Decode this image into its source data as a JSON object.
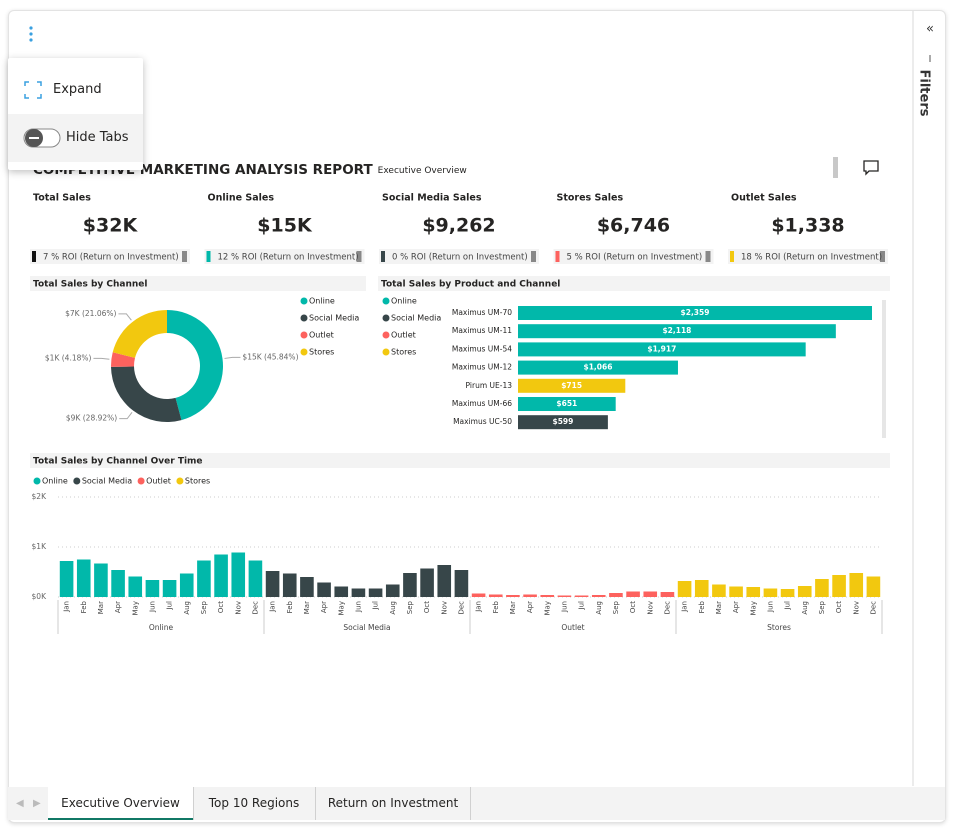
{
  "menu": {
    "items": [
      "Expand",
      "Hide Tabs"
    ]
  },
  "report": {
    "title": "COMPETITIVE MARKETING ANALYSIS REPORT",
    "subtitle": "Executive Overview"
  },
  "kpis": [
    {
      "label": "Total Sales",
      "value": "$32K",
      "roi": "7 % ROI (Return on Investment)",
      "color": "#111111"
    },
    {
      "label": "Online Sales",
      "value": "$15K",
      "roi": "12 % ROI (Return on Investment)",
      "color": "#01b8aa"
    },
    {
      "label": "Social Media Sales",
      "value": "$9,262",
      "roi": "0 % ROI (Return on Investment)",
      "color": "#374649"
    },
    {
      "label": "Stores Sales",
      "value": "$6,746",
      "roi": "5 % ROI (Return on Investment)",
      "color": "#fd625e"
    },
    {
      "label": "Outlet Sales",
      "value": "$1,338",
      "roi": "18 % ROI (Return on Investment)",
      "color": "#f2c80f"
    }
  ],
  "chart_data": [
    {
      "type": "donut",
      "title": "Total Sales by Channel",
      "categories": [
        "Online",
        "Social Media",
        "Outlet",
        "Stores"
      ],
      "colors": [
        "#01b8aa",
        "#374649",
        "#fd625e",
        "#f2c80f"
      ],
      "values": [
        45.84,
        28.92,
        4.18,
        21.06
      ],
      "value_labels": [
        "$15K (45.84%)",
        "$9K (28.92%)",
        "$1K (4.18%)",
        "$7K (21.06%)"
      ]
    },
    {
      "type": "hbar",
      "title": "Total Sales by Product and Channel",
      "legend": [
        {
          "name": "Online",
          "color": "#01b8aa"
        },
        {
          "name": "Social Media",
          "color": "#374649"
        },
        {
          "name": "Outlet",
          "color": "#fd625e"
        },
        {
          "name": "Stores",
          "color": "#f2c80f"
        }
      ],
      "categories": [
        "Maximus UM-70",
        "Maximus UM-11",
        "Maximus UM-54",
        "Maximus UM-12",
        "Pirum UE-13",
        "Maximus UM-66",
        "Maximus UC-50"
      ],
      "values": [
        2359,
        2118,
        1917,
        1066,
        715,
        651,
        599
      ],
      "value_labels": [
        "$2,359",
        "$2,118",
        "$1,917",
        "$1,066",
        "$715",
        "$651",
        "$599"
      ],
      "colors": [
        "#01b8aa",
        "#01b8aa",
        "#01b8aa",
        "#01b8aa",
        "#f2c80f",
        "#01b8aa",
        "#374649"
      ]
    },
    {
      "type": "column",
      "title": "Total Sales by Channel Over Time",
      "categories": [
        "Jan",
        "Feb",
        "Mar",
        "Apr",
        "May",
        "Jun",
        "Jul",
        "Aug",
        "Sep",
        "Oct",
        "Nov",
        "Dec"
      ],
      "series": [
        {
          "name": "Online",
          "color": "#01b8aa",
          "values": [
            720,
            750,
            670,
            540,
            410,
            340,
            340,
            470,
            730,
            850,
            890,
            730
          ]
        },
        {
          "name": "Social Media",
          "color": "#374649",
          "values": [
            520,
            470,
            400,
            290,
            210,
            170,
            170,
            250,
            480,
            570,
            640,
            540
          ]
        },
        {
          "name": "Outlet",
          "color": "#fd625e",
          "values": [
            70,
            50,
            40,
            50,
            40,
            30,
            30,
            40,
            80,
            110,
            110,
            100
          ]
        },
        {
          "name": "Stores",
          "color": "#f2c80f",
          "values": [
            320,
            340,
            250,
            210,
            200,
            170,
            160,
            220,
            360,
            440,
            480,
            410
          ]
        }
      ],
      "ylim": [
        0,
        2000
      ],
      "yticks": [
        {
          "value": 0,
          "label": "$0K"
        },
        {
          "value": 1000,
          "label": "$1K"
        },
        {
          "value": 2000,
          "label": "$2K"
        }
      ],
      "grid": true
    }
  ],
  "tabs": {
    "items": [
      "Executive Overview",
      "Top 10 Regions",
      "Return on Investment"
    ],
    "active": 0
  },
  "filters": {
    "label": "Filters"
  }
}
